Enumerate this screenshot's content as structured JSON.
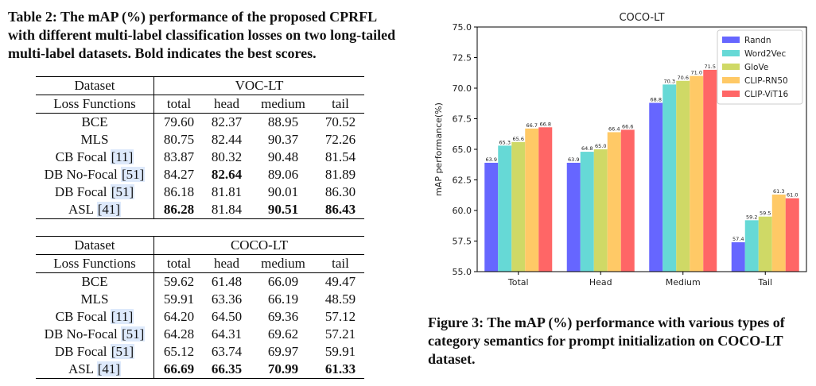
{
  "table_caption": "Table 2: The mAP (%) performance of the proposed CPRFL with different multi-label classification losses on two long-tailed multi-label datasets. Bold indicates the best scores.",
  "figure_caption": "Figure 3: The mAP (%) performance with various types of category semantics for prompt initialization on COCO-LT dataset.",
  "tables": [
    {
      "dataset_label": "Dataset",
      "dataset": "VOC-LT",
      "loss_label": "Loss Functions",
      "columns": [
        "total",
        "head",
        "medium",
        "tail"
      ],
      "rows": [
        {
          "name": "BCE",
          "ref": "",
          "values": [
            "79.60",
            "82.37",
            "88.95",
            "70.52"
          ],
          "bold": [
            false,
            false,
            false,
            false
          ]
        },
        {
          "name": "MLS",
          "ref": "",
          "values": [
            "80.75",
            "82.44",
            "90.37",
            "72.26"
          ],
          "bold": [
            false,
            false,
            false,
            false
          ]
        },
        {
          "name": "CB Focal",
          "ref": "[11]",
          "values": [
            "83.87",
            "80.32",
            "90.48",
            "81.54"
          ],
          "bold": [
            false,
            false,
            false,
            false
          ]
        },
        {
          "name": "DB No-Focal",
          "ref": "[51]",
          "values": [
            "84.27",
            "82.64",
            "89.06",
            "81.89"
          ],
          "bold": [
            false,
            true,
            false,
            false
          ]
        },
        {
          "name": "DB Focal",
          "ref": "[51]",
          "values": [
            "86.18",
            "81.81",
            "90.01",
            "86.30"
          ],
          "bold": [
            false,
            false,
            false,
            false
          ]
        },
        {
          "name": "ASL",
          "ref": "[41]",
          "values": [
            "86.28",
            "81.84",
            "90.51",
            "86.43"
          ],
          "bold": [
            true,
            false,
            true,
            true
          ]
        }
      ]
    },
    {
      "dataset_label": "Dataset",
      "dataset": "COCO-LT",
      "loss_label": "Loss Functions",
      "columns": [
        "total",
        "head",
        "medium",
        "tail"
      ],
      "rows": [
        {
          "name": "BCE",
          "ref": "",
          "values": [
            "59.62",
            "61.48",
            "66.09",
            "49.47"
          ],
          "bold": [
            false,
            false,
            false,
            false
          ]
        },
        {
          "name": "MLS",
          "ref": "",
          "values": [
            "59.91",
            "63.36",
            "66.19",
            "48.59"
          ],
          "bold": [
            false,
            false,
            false,
            false
          ]
        },
        {
          "name": "CB Focal",
          "ref": "[11]",
          "values": [
            "64.20",
            "64.50",
            "69.36",
            "57.12"
          ],
          "bold": [
            false,
            false,
            false,
            false
          ]
        },
        {
          "name": "DB No-Focal",
          "ref": "[51]",
          "values": [
            "64.28",
            "64.31",
            "69.62",
            "57.21"
          ],
          "bold": [
            false,
            false,
            false,
            false
          ]
        },
        {
          "name": "DB Focal",
          "ref": "[51]",
          "values": [
            "65.12",
            "63.74",
            "69.97",
            "59.91"
          ],
          "bold": [
            false,
            false,
            false,
            false
          ]
        },
        {
          "name": "ASL",
          "ref": "[41]",
          "values": [
            "66.69",
            "66.35",
            "70.99",
            "61.33"
          ],
          "bold": [
            true,
            true,
            true,
            true
          ]
        }
      ]
    }
  ],
  "chart_data": {
    "type": "bar",
    "title": "COCO-LT",
    "xlabel": "",
    "ylabel": "mAP performance(%)",
    "ylim": [
      55.0,
      75.0
    ],
    "yticks": [
      "55.0",
      "57.5",
      "60.0",
      "62.5",
      "65.0",
      "67.5",
      "70.0",
      "72.5",
      "75.0"
    ],
    "categories": [
      "Total",
      "Head",
      "Medium",
      "Tail"
    ],
    "legend_position": "top-right",
    "series": [
      {
        "name": "Randn",
        "color": "#6666ff",
        "values": [
          63.9,
          63.9,
          68.8,
          57.4
        ],
        "labels": [
          "63.9",
          "63.9",
          "68.8",
          "57.4"
        ]
      },
      {
        "name": "Word2Vec",
        "color": "#66d9d6",
        "values": [
          65.3,
          64.8,
          70.3,
          59.2
        ],
        "labels": [
          "65.3",
          "64.8",
          "70.3",
          "59.2"
        ]
      },
      {
        "name": "GloVe",
        "color": "#cfd966",
        "values": [
          65.6,
          65.0,
          70.6,
          59.5
        ],
        "labels": [
          "65.6",
          "65.0",
          "70.6",
          "59.5"
        ]
      },
      {
        "name": "CLIP-RN50",
        "color": "#ffc966",
        "values": [
          66.7,
          66.4,
          71.0,
          61.3
        ],
        "labels": [
          "66.7",
          "66.4",
          "71.0",
          "61.3"
        ]
      },
      {
        "name": "CLIP-ViT16",
        "color": "#ff6666",
        "values": [
          66.8,
          66.6,
          71.5,
          61.0
        ],
        "labels": [
          "66.8",
          "66.6",
          "71.5",
          "61.0"
        ]
      }
    ]
  }
}
